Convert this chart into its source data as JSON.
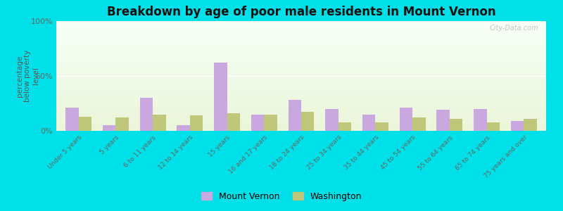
{
  "title": "Breakdown by age of poor male residents in Mount Vernon",
  "ylabel": "percentage\nbelow poverty\nlevel",
  "categories": [
    "Under 5 years",
    "5 years",
    "6 to 11 years",
    "12 to 14 years",
    "15 years",
    "16 and 17 years",
    "18 to 24 years",
    "25 to 34 years",
    "35 to 44 years",
    "45 to 54 years",
    "55 to 64 years",
    "65 to 74 years",
    "75 years and over"
  ],
  "mount_vernon": [
    21,
    5,
    30,
    5,
    62,
    15,
    28,
    20,
    15,
    21,
    19,
    20,
    9
  ],
  "washington": [
    13,
    12,
    15,
    14,
    16,
    15,
    17,
    8,
    8,
    12,
    11,
    8,
    11
  ],
  "mv_color": "#c9a8df",
  "wa_color": "#bfc87a",
  "background": "#00e0e8",
  "ylim": [
    0,
    100
  ],
  "yticks": [
    0,
    50,
    100
  ],
  "ytick_labels": [
    "0%",
    "50%",
    "100%"
  ],
  "watermark": "City-Data.com",
  "legend_mv": "Mount Vernon",
  "legend_wa": "Washington",
  "bar_width": 0.35
}
